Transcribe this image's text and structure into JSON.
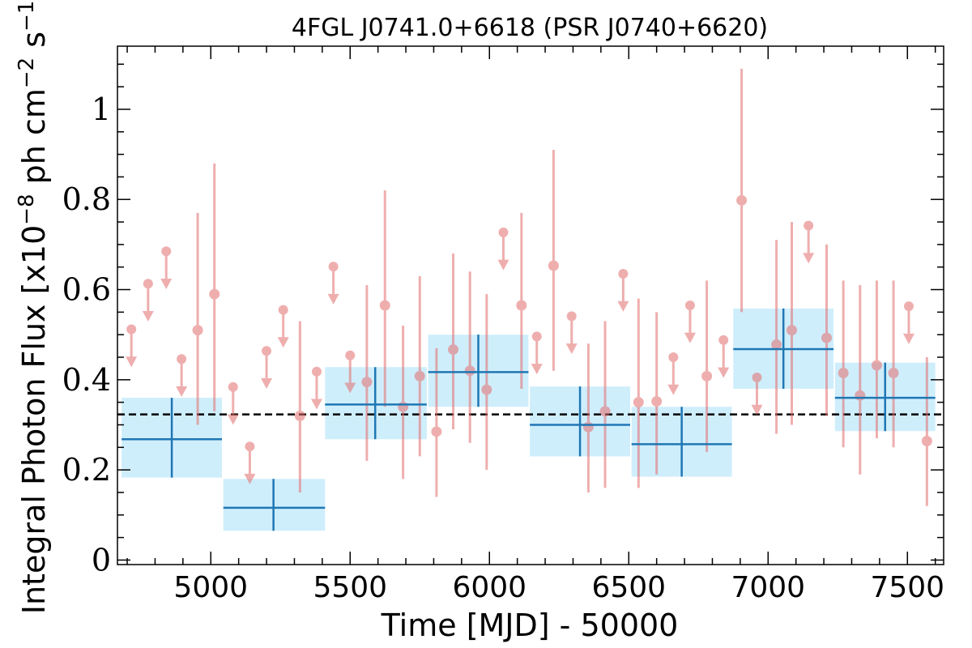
{
  "chart_data": {
    "type": "scatter",
    "title": "4FGL J0741.0+6618 (PSR J0740+6620)",
    "xlabel": "Time [MJD] - 50000",
    "ylabel": "Integral Photon Flux [x10",
    "ylabel_exp": "−8",
    "ylabel_mid": " ph cm",
    "ylabel_exp2": "−2",
    "ylabel_tail": " s",
    "ylabel_exp3": "−1",
    "ylabel_close": "]",
    "xlim": [
      4665,
      7630
    ],
    "ylim": [
      -0.01,
      1.14
    ],
    "xticks": [
      5000,
      5500,
      6000,
      6500,
      7000,
      7500
    ],
    "xtick_labels": [
      "5000",
      "5500",
      "6000",
      "6500",
      "7000",
      "7500"
    ],
    "yticks": [
      0,
      0.2,
      0.4,
      0.6,
      0.8,
      1
    ],
    "ytick_labels": [
      "0",
      "0.2",
      "0.4",
      "0.6",
      "0.8",
      "1"
    ],
    "grid": false,
    "mean_flux": 0.323,
    "colors": {
      "points": "#e36c6c",
      "bins": "#1f77b4",
      "bin_fill": "#cfeefc",
      "mean_line": "#000000"
    },
    "short_bins": {
      "detections": [
        {
          "x": 4953,
          "y": 0.51,
          "ylo": 0.3,
          "yhi": 0.77
        },
        {
          "x": 5013,
          "y": 0.59,
          "ylo": 0.33,
          "yhi": 0.88
        },
        {
          "x": 5320,
          "y": 0.32,
          "ylo": 0.15,
          "yhi": 0.53
        },
        {
          "x": 5560,
          "y": 0.395,
          "ylo": 0.22,
          "yhi": 0.61
        },
        {
          "x": 5625,
          "y": 0.565,
          "ylo": 0.34,
          "yhi": 0.82
        },
        {
          "x": 5690,
          "y": 0.34,
          "ylo": 0.18,
          "yhi": 0.52
        },
        {
          "x": 5750,
          "y": 0.408,
          "ylo": 0.23,
          "yhi": 0.63
        },
        {
          "x": 5810,
          "y": 0.285,
          "ylo": 0.14,
          "yhi": 0.47
        },
        {
          "x": 5870,
          "y": 0.467,
          "ylo": 0.29,
          "yhi": 0.68
        },
        {
          "x": 5930,
          "y": 0.42,
          "ylo": 0.26,
          "yhi": 0.64
        },
        {
          "x": 5990,
          "y": 0.378,
          "ylo": 0.2,
          "yhi": 0.59
        },
        {
          "x": 6115,
          "y": 0.565,
          "ylo": 0.38,
          "yhi": 0.77
        },
        {
          "x": 6230,
          "y": 0.653,
          "ylo": 0.42,
          "yhi": 0.91
        },
        {
          "x": 6355,
          "y": 0.295,
          "ylo": 0.15,
          "yhi": 0.48
        },
        {
          "x": 6415,
          "y": 0.33,
          "ylo": 0.16,
          "yhi": 0.53
        },
        {
          "x": 6535,
          "y": 0.35,
          "ylo": 0.16,
          "yhi": 0.58
        },
        {
          "x": 6600,
          "y": 0.352,
          "ylo": 0.19,
          "yhi": 0.55
        },
        {
          "x": 6780,
          "y": 0.408,
          "ylo": 0.24,
          "yhi": 0.62
        },
        {
          "x": 6905,
          "y": 0.798,
          "ylo": 0.55,
          "yhi": 1.09
        },
        {
          "x": 7030,
          "y": 0.478,
          "ylo": 0.28,
          "yhi": 0.71
        },
        {
          "x": 7085,
          "y": 0.51,
          "ylo": 0.3,
          "yhi": 0.75
        },
        {
          "x": 7210,
          "y": 0.493,
          "ylo": 0.32,
          "yhi": 0.7
        },
        {
          "x": 7270,
          "y": 0.415,
          "ylo": 0.25,
          "yhi": 0.62
        },
        {
          "x": 7330,
          "y": 0.365,
          "ylo": 0.19,
          "yhi": 0.61
        },
        {
          "x": 7390,
          "y": 0.432,
          "ylo": 0.27,
          "yhi": 0.62
        },
        {
          "x": 7450,
          "y": 0.415,
          "ylo": 0.25,
          "yhi": 0.62
        },
        {
          "x": 7570,
          "y": 0.264,
          "ylo": 0.12,
          "yhi": 0.45
        }
      ],
      "upper_limits": [
        {
          "x": 4715,
          "y": 0.512
        },
        {
          "x": 4775,
          "y": 0.613
        },
        {
          "x": 4840,
          "y": 0.685
        },
        {
          "x": 4895,
          "y": 0.446
        },
        {
          "x": 5080,
          "y": 0.384
        },
        {
          "x": 5140,
          "y": 0.252
        },
        {
          "x": 5200,
          "y": 0.464
        },
        {
          "x": 5260,
          "y": 0.555
        },
        {
          "x": 5380,
          "y": 0.418
        },
        {
          "x": 5440,
          "y": 0.651
        },
        {
          "x": 5500,
          "y": 0.454
        },
        {
          "x": 6050,
          "y": 0.727
        },
        {
          "x": 6170,
          "y": 0.496
        },
        {
          "x": 6295,
          "y": 0.541
        },
        {
          "x": 6480,
          "y": 0.635
        },
        {
          "x": 6660,
          "y": 0.45
        },
        {
          "x": 6720,
          "y": 0.565
        },
        {
          "x": 6840,
          "y": 0.488
        },
        {
          "x": 6960,
          "y": 0.405
        },
        {
          "x": 7145,
          "y": 0.742
        },
        {
          "x": 7505,
          "y": 0.563
        }
      ]
    },
    "long_bins": [
      {
        "x": 4860,
        "xlo": 4680,
        "xhi": 5040,
        "y": 0.268,
        "ylo": 0.183,
        "yhi": 0.36
      },
      {
        "x": 5225,
        "xlo": 5045,
        "xhi": 5410,
        "y": 0.116,
        "ylo": 0.065,
        "yhi": 0.18
      },
      {
        "x": 5590,
        "xlo": 5410,
        "xhi": 5775,
        "y": 0.345,
        "ylo": 0.268,
        "yhi": 0.428
      },
      {
        "x": 5960,
        "xlo": 5780,
        "xhi": 6140,
        "y": 0.417,
        "ylo": 0.34,
        "yhi": 0.5
      },
      {
        "x": 6325,
        "xlo": 6145,
        "xhi": 6505,
        "y": 0.3,
        "ylo": 0.23,
        "yhi": 0.385
      },
      {
        "x": 6690,
        "xlo": 6510,
        "xhi": 6870,
        "y": 0.257,
        "ylo": 0.185,
        "yhi": 0.34
      },
      {
        "x": 7055,
        "xlo": 6875,
        "xhi": 7235,
        "y": 0.468,
        "ylo": 0.38,
        "yhi": 0.558
      },
      {
        "x": 7420,
        "xlo": 7240,
        "xhi": 7600,
        "y": 0.36,
        "ylo": 0.286,
        "yhi": 0.438
      }
    ]
  }
}
